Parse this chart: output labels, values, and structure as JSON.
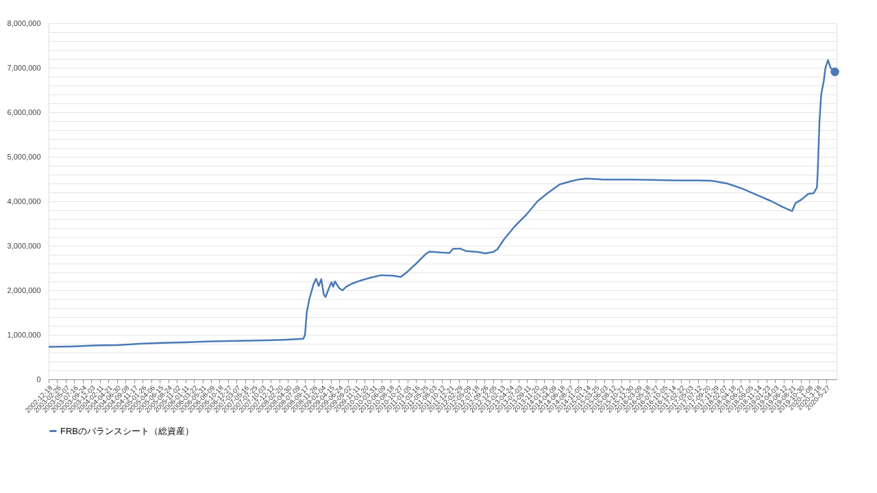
{
  "chart_data": {
    "type": "line",
    "legend": "bottom",
    "grid": "y",
    "line_style": "solid",
    "marker": "none",
    "xlim": [
      "2002-12-18",
      "2020-08-19"
    ],
    "xticks": [
      {
        "value": "2002-12-18",
        "label": "2002-12-18"
      },
      {
        "value": "2003-02-26",
        "label": "2003-02-26"
      },
      {
        "value": "2003-05-07",
        "label": "2003-05-07"
      },
      {
        "value": "2003-07-16",
        "label": "2003-07-16"
      },
      {
        "value": "2003-09-24",
        "label": "2003-09-24"
      },
      {
        "value": "2003-12-03",
        "label": "2003-12-03"
      },
      {
        "value": "2004-02-11",
        "label": "2004-02-11"
      },
      {
        "value": "2004-04-21",
        "label": "2004-04-21"
      },
      {
        "value": "2004-06-30",
        "label": "2004-06-30"
      },
      {
        "value": "2004-09-08",
        "label": "2004-09-08"
      },
      {
        "value": "2004-11-17",
        "label": "2004-11-17"
      },
      {
        "value": "2005-01-26",
        "label": "2005-01-26"
      },
      {
        "value": "2005-04-06",
        "label": "2005-04-06"
      },
      {
        "value": "2005-06-15",
        "label": "2005-06-15"
      },
      {
        "value": "2005-08-24",
        "label": "2005-08-24"
      },
      {
        "value": "2005-11-02",
        "label": "2005-11-02"
      },
      {
        "value": "2006-01-11",
        "label": "2006-01-11"
      },
      {
        "value": "2006-03-22",
        "label": "2006-03-22"
      },
      {
        "value": "2006-05-31",
        "label": "2006-05-31"
      },
      {
        "value": "2006-08-09",
        "label": "2006-08-09"
      },
      {
        "value": "2006-10-18",
        "label": "2006-10-18"
      },
      {
        "value": "2006-12-27",
        "label": "2006-12-27"
      },
      {
        "value": "2007-03-07",
        "label": "2007-03-07"
      },
      {
        "value": "2007-05-16",
        "label": "2007-05-16"
      },
      {
        "value": "2007-07-25",
        "label": "2007-07-25"
      },
      {
        "value": "2007-10-03",
        "label": "2007-10-03"
      },
      {
        "value": "2007-12-12",
        "label": "2007-12-12"
      },
      {
        "value": "2008-02-20",
        "label": "2008-02-20"
      },
      {
        "value": "2008-04-30",
        "label": "2008-04-30"
      },
      {
        "value": "2008-07-09",
        "label": "2008-07-09"
      },
      {
        "value": "2008-09-17",
        "label": "2008-09-17"
      },
      {
        "value": "2008-11-26",
        "label": "2008-11-26"
      },
      {
        "value": "2009-02-04",
        "label": "2009-02-04"
      },
      {
        "value": "2009-04-15",
        "label": "2009-04-15"
      },
      {
        "value": "2009-06-24",
        "label": "2009-06-24"
      },
      {
        "value": "2009-09-02",
        "label": "2009-09-02"
      },
      {
        "value": "2009-11-11",
        "label": "2009-11-11"
      },
      {
        "value": "2010-01-20",
        "label": "2010-01-20"
      },
      {
        "value": "2010-03-31",
        "label": "2010-03-31"
      },
      {
        "value": "2010-06-09",
        "label": "2010-06-09"
      },
      {
        "value": "2010-08-18",
        "label": "2010-08-18"
      },
      {
        "value": "2010-10-27",
        "label": "2010-10-27"
      },
      {
        "value": "2011-01-05",
        "label": "2011-01-05"
      },
      {
        "value": "2011-03-16",
        "label": "2011-03-16"
      },
      {
        "value": "2011-05-25",
        "label": "2011-05-25"
      },
      {
        "value": "2011-08-03",
        "label": "2011-08-03"
      },
      {
        "value": "2011-10-12",
        "label": "2011-10-12"
      },
      {
        "value": "2011-12-21",
        "label": "2011-12-21"
      },
      {
        "value": "2012-02-29",
        "label": "2012-02-29"
      },
      {
        "value": "2012-05-09",
        "label": "2012-05-09"
      },
      {
        "value": "2012-07-18",
        "label": "2012-07-18"
      },
      {
        "value": "2012-09-26",
        "label": "2012-09-26"
      },
      {
        "value": "2012-12-05",
        "label": "2012-12-05"
      },
      {
        "value": "2013-02-13",
        "label": "2013-02-13"
      },
      {
        "value": "2013-04-24",
        "label": "2013-04-24"
      },
      {
        "value": "2013-07-03",
        "label": "2013-07-03"
      },
      {
        "value": "2013-09-11",
        "label": "2013-09-11"
      },
      {
        "value": "2013-11-20",
        "label": "2013-11-20"
      },
      {
        "value": "2014-01-29",
        "label": "2014-01-29"
      },
      {
        "value": "2014-04-09",
        "label": "2014-04-09"
      },
      {
        "value": "2014-06-18",
        "label": "2014-06-18"
      },
      {
        "value": "2014-08-27",
        "label": "2014-08-27"
      },
      {
        "value": "2014-11-05",
        "label": "2014-11-05"
      },
      {
        "value": "2015-01-14",
        "label": "2015-01-14"
      },
      {
        "value": "2015-03-25",
        "label": "2015-03-25"
      },
      {
        "value": "2015-06-03",
        "label": "2015-06-03"
      },
      {
        "value": "2015-08-12",
        "label": "2015-08-12"
      },
      {
        "value": "2015-10-21",
        "label": "2015-10-21"
      },
      {
        "value": "2015-12-30",
        "label": "2015-12-30"
      },
      {
        "value": "2016-03-09",
        "label": "2016-03-09"
      },
      {
        "value": "2016-05-18",
        "label": "2016-05-18"
      },
      {
        "value": "2016-07-27",
        "label": "2016-07-27"
      },
      {
        "value": "2016-10-05",
        "label": "2016-10-05"
      },
      {
        "value": "2016-12-14",
        "label": "2016-12-14"
      },
      {
        "value": "2017-02-22",
        "label": "2017-02-22"
      },
      {
        "value": "2017-05-03",
        "label": "2017-05-03"
      },
      {
        "value": "2017-07-12",
        "label": "2017-07-12"
      },
      {
        "value": "2017-09-20",
        "label": "2017-09-20"
      },
      {
        "value": "2017-11-29",
        "label": "2017-11-29"
      },
      {
        "value": "2018-02-07",
        "label": "2018-02-07"
      },
      {
        "value": "2018-04-18",
        "label": "2018-04-18"
      },
      {
        "value": "2018-06-27",
        "label": "2018-06-27"
      },
      {
        "value": "2018-09-05",
        "label": "2018-09-05"
      },
      {
        "value": "2018-11-14",
        "label": "2018-11-14"
      },
      {
        "value": "2019-01-23",
        "label": "2019-01-23"
      },
      {
        "value": "2019-04-03",
        "label": "2019-04-03"
      },
      {
        "value": "2019-06-12",
        "label": "2019-06-12"
      },
      {
        "value": "2019-08-21",
        "label": "2019-08-21"
      },
      {
        "value": "2019-10-30",
        "label": "2019-10-30"
      },
      {
        "value": "2020-01-08",
        "label": "2020-1-08"
      },
      {
        "value": "2020-03-18",
        "label": "2020-3-18"
      },
      {
        "value": "2020-05-27",
        "label": "2020-5-27"
      }
    ],
    "ylim": [
      0,
      8000000
    ],
    "yticks": [
      0,
      {
        "value": 200000,
        "label": null
      },
      {
        "value": 400000,
        "label": null
      },
      {
        "value": 600000,
        "label": null
      },
      {
        "value": 800000,
        "label": null
      },
      {
        "value": 1000000,
        "label": "1,000,000"
      },
      {
        "value": 1200000,
        "label": null
      },
      {
        "value": 1400000,
        "label": null
      },
      {
        "value": 1600000,
        "label": null
      },
      {
        "value": 1800000,
        "label": null
      },
      {
        "value": 2000000,
        "label": "2,000,000"
      },
      {
        "value": 2200000,
        "label": null
      },
      {
        "value": 2400000,
        "label": null
      },
      {
        "value": 2600000,
        "label": null
      },
      {
        "value": 2800000,
        "label": null
      },
      {
        "value": 3000000,
        "label": "3,000,000"
      },
      {
        "value": 3200000,
        "label": null
      },
      {
        "value": 3400000,
        "label": null
      },
      {
        "value": 3600000,
        "label": null
      },
      {
        "value": 3800000,
        "label": null
      },
      {
        "value": 4000000,
        "label": "4,000,000"
      },
      {
        "value": 4200000,
        "label": null
      },
      {
        "value": 4400000,
        "label": null
      },
      {
        "value": 4600000,
        "label": null
      },
      {
        "value": 4800000,
        "label": null
      },
      {
        "value": 5000000,
        "label": "5,000,000"
      },
      {
        "value": 5200000,
        "label": null
      },
      {
        "value": 5400000,
        "label": null
      },
      {
        "value": 5600000,
        "label": null
      },
      {
        "value": 5800000,
        "label": null
      },
      {
        "value": 6000000,
        "label": "6,000,000"
      },
      {
        "value": 6200000,
        "label": null
      },
      {
        "value": 6400000,
        "label": null
      },
      {
        "value": 6600000,
        "label": null
      },
      {
        "value": 6800000,
        "label": null
      },
      {
        "value": 7000000,
        "label": "7,000,000"
      },
      {
        "value": 7200000,
        "label": null
      },
      {
        "value": 7400000,
        "label": null
      },
      {
        "value": 7600000,
        "label": null
      },
      {
        "value": 7800000,
        "label": null
      },
      {
        "value": 8000000,
        "label": "8,000,000"
      }
    ],
    "series": [
      {
        "name": "FRBのバランスシート（総資産）",
        "color": "#4a7ab7",
        "x": [
          "2002-12-18",
          "2003-06-25",
          "2004-01-07",
          "2004-07-07",
          "2005-01-05",
          "2005-07-06",
          "2006-01-04",
          "2006-07-05",
          "2007-01-03",
          "2007-07-04",
          "2008-01-02",
          "2008-04-02",
          "2008-09-03",
          "2008-09-17",
          "2008-10-01",
          "2008-10-22",
          "2008-11-26",
          "2008-12-17",
          "2009-01-07",
          "2009-01-28",
          "2009-02-18",
          "2009-03-04",
          "2009-04-01",
          "2009-04-22",
          "2009-05-06",
          "2009-05-20",
          "2009-06-24",
          "2009-07-22",
          "2009-08-19",
          "2009-10-07",
          "2009-12-16",
          "2010-03-03",
          "2010-06-02",
          "2010-09-01",
          "2010-11-10",
          "2011-01-05",
          "2011-03-16",
          "2011-06-08",
          "2011-07-06",
          "2011-10-05",
          "2011-12-14",
          "2012-01-11",
          "2012-03-07",
          "2012-05-02",
          "2012-08-01",
          "2012-10-03",
          "2012-12-05",
          "2013-01-09",
          "2013-03-06",
          "2013-06-05",
          "2013-09-04",
          "2013-12-04",
          "2014-03-05",
          "2014-06-04",
          "2014-09-03",
          "2014-11-05",
          "2015-01-07",
          "2015-06-03",
          "2016-01-06",
          "2016-07-06",
          "2017-01-04",
          "2017-07-05",
          "2017-11-01",
          "2018-03-07",
          "2018-07-04",
          "2018-11-07",
          "2019-03-06",
          "2019-06-05",
          "2019-08-21",
          "2019-09-18",
          "2019-11-06",
          "2020-01-01",
          "2020-02-12",
          "2020-03-11",
          "2020-03-18",
          "2020-03-25",
          "2020-04-01",
          "2020-04-15",
          "2020-05-06",
          "2020-05-20",
          "2020-06-10",
          "2020-07-01",
          "2020-08-05"
        ],
        "values": [
          730000,
          740000,
          760000,
          770000,
          800000,
          820000,
          830000,
          850000,
          860000,
          870000,
          880000,
          890000,
          910000,
          1000000,
          1500000,
          1800000,
          2140000,
          2260000,
          2100000,
          2250000,
          1900000,
          1850000,
          2050000,
          2180000,
          2080000,
          2200000,
          2050000,
          2000000,
          2080000,
          2150000,
          2220000,
          2280000,
          2340000,
          2330000,
          2300000,
          2420000,
          2600000,
          2830000,
          2870000,
          2850000,
          2840000,
          2930000,
          2940000,
          2880000,
          2860000,
          2830000,
          2860000,
          2920000,
          3150000,
          3450000,
          3700000,
          4000000,
          4200000,
          4380000,
          4450000,
          4490000,
          4510000,
          4490000,
          4490000,
          4480000,
          4470000,
          4470000,
          4460000,
          4400000,
          4290000,
          4140000,
          4000000,
          3870000,
          3780000,
          3960000,
          4040000,
          4170000,
          4180000,
          4310000,
          4670000,
          5250000,
          5800000,
          6400000,
          6700000,
          7000000,
          7170000,
          7000000,
          6910000
        ]
      },
      {
        "type": "scatter",
        "marker": "circle",
        "color": "#4a7ab7",
        "x": [
          "2020-08-05"
        ],
        "values": [
          6910000
        ]
      }
    ]
  }
}
